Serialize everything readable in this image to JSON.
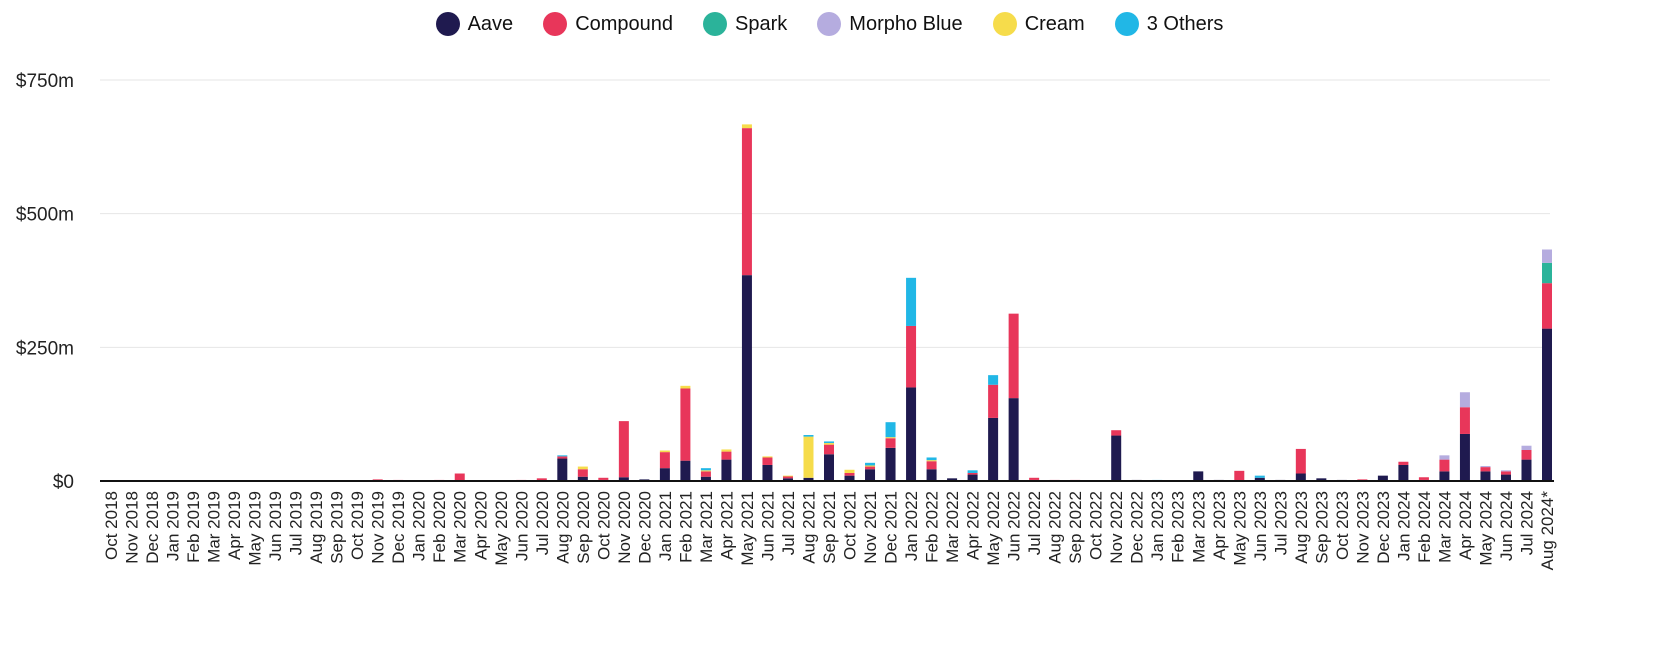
{
  "chart_data": {
    "type": "bar",
    "stacked": true,
    "grid": true,
    "legend_position": "top-center",
    "y_ticks": [
      "$0",
      "$250m",
      "$500m",
      "$750m"
    ],
    "y_tick_values": [
      0,
      250,
      500,
      750
    ],
    "ylim": [
      0,
      750
    ],
    "categories": [
      "Oct 2018",
      "Nov 2018",
      "Dec 2018",
      "Jan 2019",
      "Feb 2019",
      "Mar 2019",
      "Apr 2019",
      "May 2019",
      "Jun 2019",
      "Jul 2019",
      "Aug 2019",
      "Sep 2019",
      "Oct 2019",
      "Nov 2019",
      "Dec 2019",
      "Jan 2020",
      "Feb 2020",
      "Mar 2020",
      "Apr 2020",
      "May 2020",
      "Jun 2020",
      "Jul 2020",
      "Aug 2020",
      "Sep 2020",
      "Oct 2020",
      "Nov 2020",
      "Dec 2020",
      "Jan 2021",
      "Feb 2021",
      "Mar 2021",
      "Apr 2021",
      "May 2021",
      "Jun 2021",
      "Jul 2021",
      "Aug 2021",
      "Sep 2021",
      "Oct 2021",
      "Nov 2021",
      "Dec 2021",
      "Jan 2022",
      "Feb 2022",
      "Mar 2022",
      "Apr 2022",
      "May 2022",
      "Jun 2022",
      "Jul 2022",
      "Aug 2022",
      "Sep 2022",
      "Oct 2022",
      "Nov 2022",
      "Dec 2022",
      "Jan 2023",
      "Feb 2023",
      "Mar 2023",
      "Apr 2023",
      "May 2023",
      "Jun 2023",
      "Jul 2023",
      "Aug 2023",
      "Sep 2023",
      "Oct 2023",
      "Nov 2023",
      "Dec 2023",
      "Jan 2024",
      "Feb 2024",
      "Mar 2024",
      "Apr 2024",
      "May 2024",
      "Jun 2024",
      "Jul 2024",
      "Aug 2024*"
    ],
    "series": [
      {
        "name": "Aave",
        "color": "#1f1a4f",
        "values": [
          0,
          0,
          0,
          0,
          0,
          0,
          0,
          0,
          0,
          0,
          0,
          0,
          0,
          0,
          0,
          0,
          0,
          0,
          0,
          0,
          0,
          0,
          42,
          8,
          2,
          7,
          3,
          24,
          38,
          8,
          40,
          385,
          30,
          5,
          6,
          50,
          10,
          22,
          62,
          175,
          22,
          5,
          12,
          118,
          155,
          2,
          1,
          1,
          0,
          85,
          2,
          0,
          0,
          18,
          2,
          1,
          6,
          2,
          14,
          5,
          2,
          1,
          10,
          30,
          2,
          18,
          88,
          18,
          12,
          40,
          285
        ]
      },
      {
        "name": "Compound",
        "color": "#e8365a",
        "values": [
          0,
          0,
          0,
          0,
          0,
          0,
          0,
          0,
          0,
          0,
          0,
          0,
          0,
          3,
          2,
          1,
          2,
          14,
          0,
          0,
          2,
          5,
          4,
          14,
          4,
          105,
          0,
          30,
          135,
          10,
          15,
          275,
          14,
          4,
          0,
          18,
          5,
          5,
          18,
          115,
          15,
          0,
          3,
          62,
          158,
          4,
          1,
          1,
          0,
          10,
          0,
          0,
          0,
          0,
          0,
          18,
          0,
          0,
          46,
          0,
          0,
          2,
          0,
          6,
          5,
          22,
          50,
          8,
          6,
          18,
          85
        ]
      },
      {
        "name": "Spark",
        "color": "#2bb39a",
        "values": [
          0,
          0,
          0,
          0,
          0,
          0,
          0,
          0,
          0,
          0,
          0,
          0,
          0,
          0,
          0,
          0,
          0,
          0,
          0,
          0,
          0,
          0,
          0,
          0,
          0,
          0,
          0,
          0,
          0,
          0,
          0,
          0,
          0,
          0,
          0,
          0,
          0,
          0,
          0,
          0,
          0,
          0,
          0,
          0,
          0,
          0,
          0,
          0,
          0,
          0,
          0,
          0,
          0,
          0,
          0,
          0,
          0,
          0,
          0,
          0,
          0,
          0,
          0,
          0,
          0,
          0,
          0,
          0,
          0,
          0,
          38
        ]
      },
      {
        "name": "Morpho Blue",
        "color": "#b5acdf",
        "values": [
          0,
          0,
          0,
          0,
          0,
          0,
          0,
          0,
          0,
          0,
          0,
          0,
          0,
          0,
          0,
          0,
          0,
          0,
          0,
          0,
          0,
          0,
          0,
          0,
          0,
          0,
          0,
          0,
          0,
          0,
          0,
          0,
          0,
          0,
          0,
          0,
          0,
          0,
          0,
          0,
          0,
          0,
          0,
          0,
          0,
          0,
          0,
          0,
          0,
          0,
          0,
          0,
          0,
          0,
          0,
          0,
          0,
          0,
          0,
          0,
          0,
          0,
          0,
          0,
          0,
          8,
          28,
          2,
          2,
          8,
          25
        ]
      },
      {
        "name": "Cream",
        "color": "#f6dc4b",
        "values": [
          0,
          0,
          0,
          0,
          0,
          0,
          0,
          0,
          0,
          0,
          0,
          0,
          0,
          0,
          0,
          0,
          0,
          0,
          0,
          0,
          0,
          0,
          0,
          5,
          0,
          0,
          0,
          3,
          5,
          2,
          4,
          7,
          2,
          1,
          77,
          3,
          6,
          2,
          2,
          0,
          2,
          0,
          0,
          0,
          0,
          0,
          0,
          0,
          0,
          0,
          0,
          0,
          0,
          0,
          0,
          0,
          0,
          0,
          0,
          0,
          0,
          0,
          0,
          0,
          0,
          0,
          0,
          0,
          0,
          0,
          0
        ]
      },
      {
        "name": "3 Others",
        "color": "#21b7e6",
        "values": [
          0,
          0,
          0,
          0,
          0,
          0,
          0,
          0,
          0,
          0,
          0,
          0,
          0,
          0,
          0,
          0,
          0,
          0,
          0,
          0,
          0,
          0,
          2,
          0,
          0,
          0,
          0,
          0,
          0,
          4,
          0,
          0,
          0,
          0,
          3,
          3,
          0,
          5,
          28,
          90,
          5,
          0,
          5,
          18,
          0,
          0,
          0,
          0,
          0,
          0,
          0,
          2,
          0,
          0,
          0,
          0,
          4,
          0,
          0,
          0,
          0,
          0,
          0,
          0,
          0,
          0,
          0,
          0,
          0,
          0,
          0
        ]
      }
    ]
  }
}
